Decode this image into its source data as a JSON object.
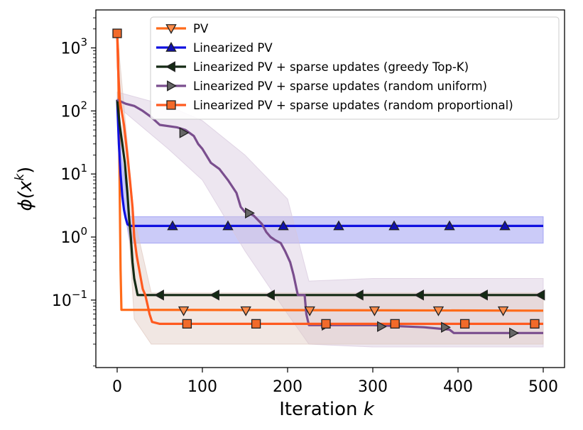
{
  "chart_data": {
    "type": "line",
    "xlabel": "Iteration",
    "xlabel_var": "k",
    "ylabel": "ϕ(x",
    "ylabel_sup": "k",
    "ylabel_close": ")",
    "xlim": [
      -25,
      525
    ],
    "ylim": [
      0.0085,
      4000
    ],
    "yscale": "log",
    "x_ticks": [
      0,
      100,
      200,
      300,
      400,
      500
    ],
    "x_tick_labels": [
      "0",
      "100",
      "200",
      "300",
      "400",
      "500"
    ],
    "y_ticks": [
      {
        "value": 1000,
        "base": "10",
        "exp": "3"
      },
      {
        "value": 100,
        "base": "10",
        "exp": "2"
      },
      {
        "value": 10,
        "base": "10",
        "exp": "1"
      },
      {
        "value": 1,
        "base": "10",
        "exp": "0"
      },
      {
        "value": 0.1,
        "base": "10",
        "exp": "−1"
      }
    ],
    "legend_position": "top-right",
    "series": [
      {
        "name": "PV",
        "color": "#FF6B1A",
        "marker": "triangle-down",
        "marker_fill": "#FF8C4A",
        "line": [
          [
            0,
            1700
          ],
          [
            1,
            900
          ],
          [
            2,
            100
          ],
          [
            3,
            5
          ],
          [
            4,
            0.3
          ],
          [
            5,
            0.07
          ],
          [
            500,
            0.068
          ]
        ],
        "band": null,
        "markers": [
          [
            78,
            0.068
          ],
          [
            151,
            0.068
          ],
          [
            226,
            0.068
          ],
          [
            302,
            0.068
          ],
          [
            377,
            0.068
          ],
          [
            453,
            0.068
          ]
        ]
      },
      {
        "name": "Linearized PV",
        "color": "#1010E0",
        "marker": "triangle-up",
        "marker_fill": "#1010B0",
        "line": [
          [
            0,
            150
          ],
          [
            2,
            30
          ],
          [
            4,
            10
          ],
          [
            6,
            4.5
          ],
          [
            8,
            2.7
          ],
          [
            10,
            2
          ],
          [
            12,
            1.6
          ],
          [
            15,
            1.5
          ],
          [
            500,
            1.5
          ]
        ],
        "band": {
          "lower": [
            [
              0,
              130
            ],
            [
              5,
              5
            ],
            [
              15,
              0.8
            ],
            [
              500,
              0.8
            ]
          ],
          "upper": [
            [
              0,
              160
            ],
            [
              5,
              20
            ],
            [
              15,
              2.1
            ],
            [
              500,
              2.1
            ]
          ],
          "color": "#8C8CF0"
        },
        "markers": [
          [
            65,
            1.5
          ],
          [
            130,
            1.5
          ],
          [
            195,
            1.5
          ],
          [
            260,
            1.5
          ],
          [
            325,
            1.5
          ],
          [
            390,
            1.5
          ],
          [
            455,
            1.5
          ]
        ]
      },
      {
        "name": "Linearized PV + sparse updates (greedy Top-K)",
        "color": "#142A14",
        "marker": "triangle-left",
        "marker_fill": "#142A14",
        "line": [
          [
            0,
            150
          ],
          [
            3,
            60
          ],
          [
            6,
            30
          ],
          [
            9,
            15
          ],
          [
            12,
            5
          ],
          [
            14,
            2
          ],
          [
            16,
            1
          ],
          [
            18,
            0.4
          ],
          [
            20,
            0.22
          ],
          [
            24,
            0.12
          ],
          [
            500,
            0.12
          ]
        ],
        "band": null,
        "markers": [
          [
            50,
            0.12
          ],
          [
            115,
            0.12
          ],
          [
            180,
            0.12
          ],
          [
            284,
            0.12
          ],
          [
            355,
            0.12
          ],
          [
            430,
            0.12
          ],
          [
            497,
            0.12
          ]
        ]
      },
      {
        "name": "Linearized PV + sparse updates (random uniform)",
        "color": "#7A4E8E",
        "marker": "triangle-right",
        "marker_fill": "#666666",
        "line": [
          [
            0,
            150
          ],
          [
            10,
            130
          ],
          [
            20,
            120
          ],
          [
            30,
            100
          ],
          [
            40,
            80
          ],
          [
            50,
            60
          ],
          [
            70,
            55
          ],
          [
            80,
            50
          ],
          [
            90,
            40
          ],
          [
            95,
            30
          ],
          [
            100,
            25
          ],
          [
            110,
            15
          ],
          [
            120,
            12
          ],
          [
            130,
            8
          ],
          [
            140,
            5
          ],
          [
            145,
            3
          ],
          [
            150,
            2.5
          ],
          [
            160,
            2.2
          ],
          [
            170,
            1.6
          ],
          [
            175,
            1.2
          ],
          [
            180,
            1
          ],
          [
            185,
            0.9
          ],
          [
            192,
            0.8
          ],
          [
            197,
            0.6
          ],
          [
            203,
            0.4
          ],
          [
            207,
            0.25
          ],
          [
            212,
            0.12
          ],
          [
            220,
            0.12
          ],
          [
            222,
            0.06
          ],
          [
            225,
            0.04
          ],
          [
            300,
            0.04
          ],
          [
            360,
            0.037
          ],
          [
            390,
            0.034
          ],
          [
            395,
            0.03
          ],
          [
            500,
            0.03
          ]
        ],
        "band": {
          "lower": [
            [
              0,
              120
            ],
            [
              60,
              25
            ],
            [
              100,
              8
            ],
            [
              150,
              0.6
            ],
            [
              200,
              0.06
            ],
            [
              225,
              0.02
            ],
            [
              300,
              0.018
            ],
            [
              500,
              0.018
            ]
          ],
          "upper": [
            [
              0,
              200
            ],
            [
              60,
              120
            ],
            [
              100,
              70
            ],
            [
              150,
              20
            ],
            [
              200,
              4
            ],
            [
              225,
              0.2
            ],
            [
              300,
              0.22
            ],
            [
              500,
              0.22
            ]
          ],
          "color": "#D7C7DD"
        },
        "markers": [
          [
            78,
            45
          ],
          [
            155,
            2.4
          ],
          [
            245,
            0.04
          ],
          [
            310,
            0.038
          ],
          [
            385,
            0.037
          ],
          [
            465,
            0.03
          ]
        ]
      },
      {
        "name": "Linearized PV + sparse updates (random proportional)",
        "color": "#FF5A1F",
        "marker": "square",
        "marker_fill": "#F26A2A",
        "line": [
          [
            0,
            1700
          ],
          [
            1,
            500
          ],
          [
            3,
            150
          ],
          [
            8,
            60
          ],
          [
            12,
            20
          ],
          [
            15,
            8
          ],
          [
            18,
            3
          ],
          [
            20,
            1
          ],
          [
            23,
            0.5
          ],
          [
            27,
            0.25
          ],
          [
            30,
            0.15
          ],
          [
            33,
            0.12
          ],
          [
            36,
            0.08
          ],
          [
            38,
            0.06
          ],
          [
            41,
            0.045
          ],
          [
            50,
            0.042
          ],
          [
            500,
            0.042
          ]
        ],
        "band": {
          "lower": [
            [
              0,
              1500
            ],
            [
              20,
              0.05
            ],
            [
              40,
              0.02
            ],
            [
              500,
              0.02
            ]
          ],
          "upper": [
            [
              0,
              1800
            ],
            [
              20,
              2
            ],
            [
              40,
              0.13
            ],
            [
              500,
              0.13
            ]
          ],
          "color": "#E0C9C0"
        },
        "markers": [
          [
            0,
            1700
          ],
          [
            82,
            0.042
          ],
          [
            163,
            0.042
          ],
          [
            245,
            0.042
          ],
          [
            326,
            0.042
          ],
          [
            408,
            0.042
          ],
          [
            490,
            0.042
          ]
        ]
      }
    ]
  }
}
